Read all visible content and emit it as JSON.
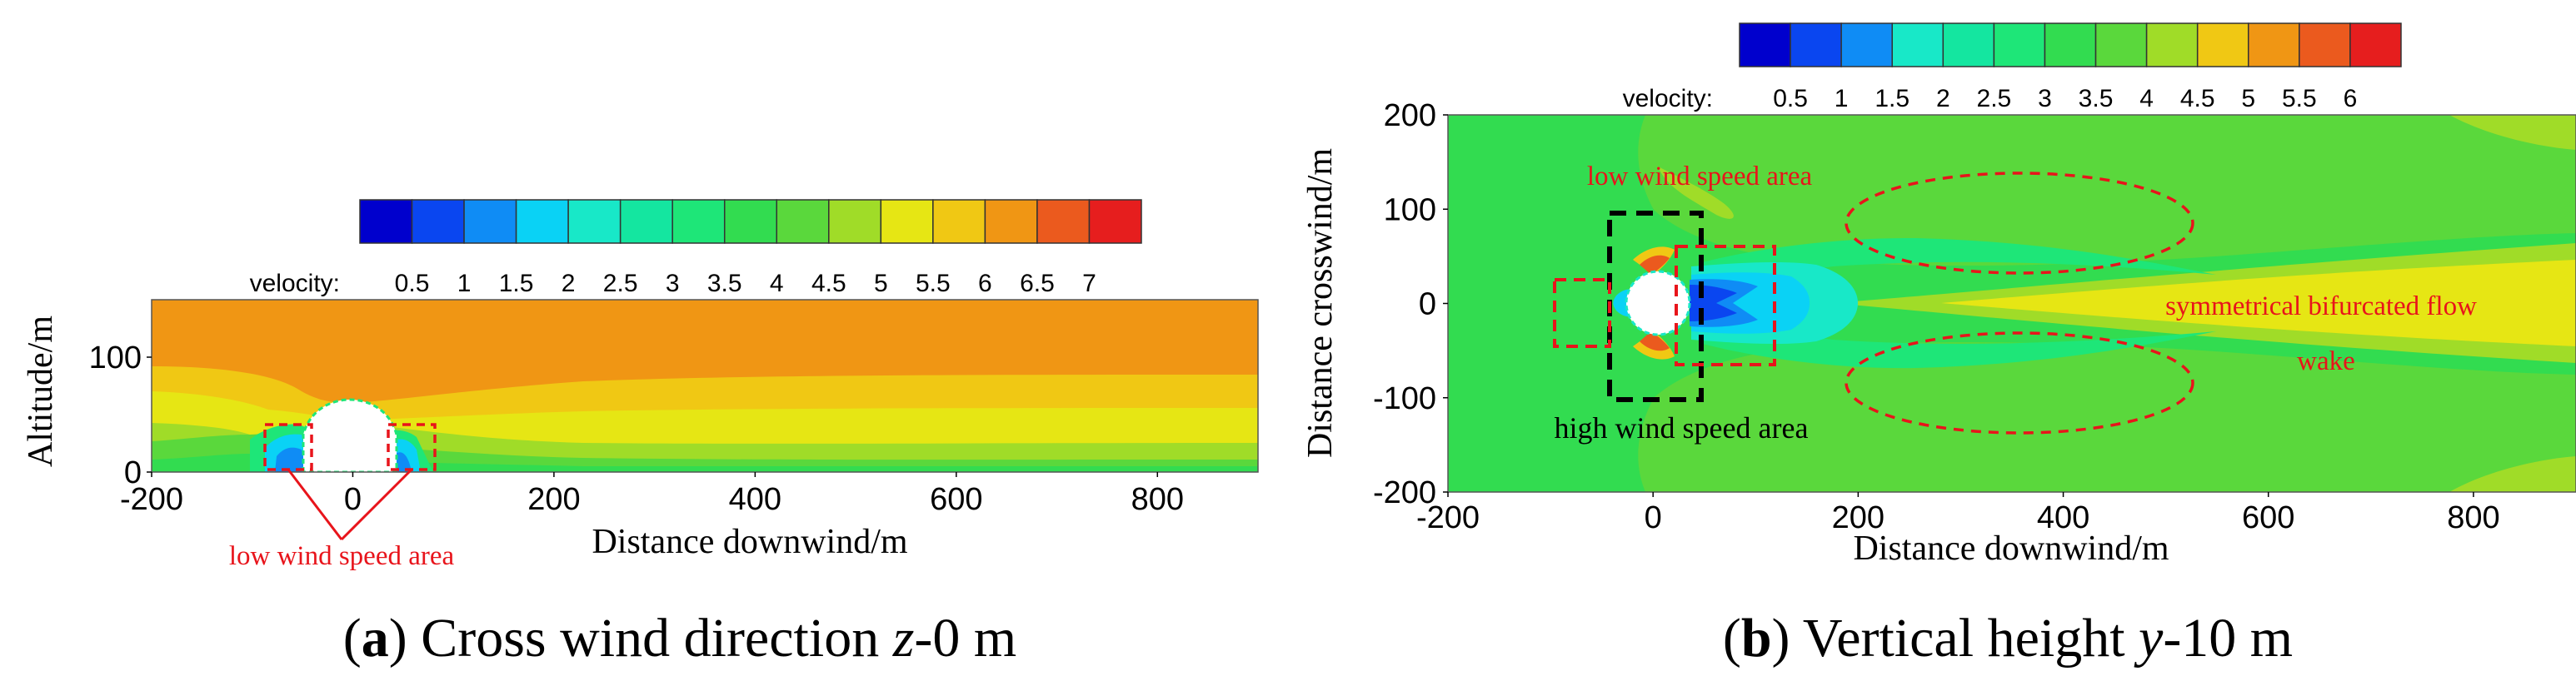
{
  "colormap": [
    "#0000cd",
    "#0a46f0",
    "#0f8cf5",
    "#0ad2f5",
    "#18e8c8",
    "#14e6a0",
    "#1ee678",
    "#32dc50",
    "#5ad83c",
    "#a0dc28",
    "#e6e614",
    "#f0c814",
    "#f09614",
    "#eb5a1e",
    "#e61e1e"
  ],
  "chart_data": [
    {
      "type": "contour",
      "panel_label": "a",
      "caption": "Cross wind direction",
      "caption_var": "z",
      "caption_value": "-0 m",
      "xlabel": "Distance downwind/m",
      "ylabel": "Altitude/m",
      "xticks": [
        "-200",
        "0",
        "200",
        "400",
        "600",
        "800"
      ],
      "yticks": [
        "0",
        "100"
      ],
      "xlim": [
        -200,
        900
      ],
      "ylim": [
        0,
        150
      ],
      "colorbar": {
        "label": "velocity:",
        "ticks": [
          "0.5",
          "1",
          "1.5",
          "2",
          "2.5",
          "3",
          "3.5",
          "4",
          "4.5",
          "5",
          "5.5",
          "6",
          "6.5",
          "7"
        ],
        "range": [
          0,
          7.5
        ]
      },
      "annotations": [
        {
          "text": "low wind speed area",
          "color": "#e8141b"
        }
      ]
    },
    {
      "type": "contour",
      "panel_label": "b",
      "caption": "Vertical height",
      "caption_var": "y",
      "caption_value": "-10 m",
      "xlabel": "Distance downwind/m",
      "ylabel": "Distance crosswind/m",
      "xticks": [
        "-200",
        "0",
        "200",
        "400",
        "600",
        "800"
      ],
      "yticks": [
        "-200",
        "-100",
        "0",
        "100",
        "200"
      ],
      "xlim": [
        -200,
        900
      ],
      "ylim": [
        -200,
        200
      ],
      "colorbar": {
        "label": "velocity:",
        "ticks": [
          "0.5",
          "1",
          "1.5",
          "2",
          "2.5",
          "3",
          "3.5",
          "4",
          "4.5",
          "5",
          "5.5",
          "6"
        ],
        "range": [
          0,
          6.5
        ]
      },
      "annotations": [
        {
          "text": "low wind speed area",
          "color": "#e8141b"
        },
        {
          "text": "symmetrical bifurcated flow",
          "color": "#e8141b"
        },
        {
          "text": "wake",
          "color": "#e8141b"
        },
        {
          "text": "high wind speed area",
          "color": "#000000"
        }
      ]
    }
  ]
}
